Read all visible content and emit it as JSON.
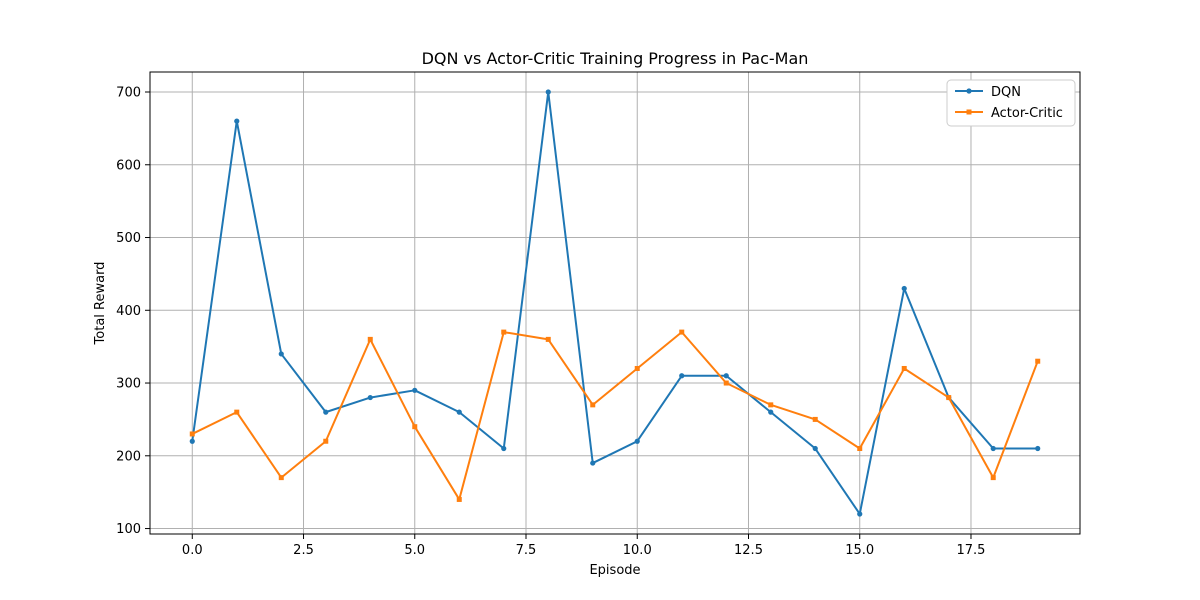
{
  "chart_data": {
    "type": "line",
    "title": "DQN vs Actor-Critic Training Progress in Pac-Man",
    "xlabel": "Episode",
    "ylabel": "Total Reward",
    "xlim": [
      -0.95,
      19.95
    ],
    "ylim": [
      92.5,
      727.5
    ],
    "xticks": [
      0.0,
      2.5,
      5.0,
      7.5,
      10.0,
      12.5,
      15.0,
      17.5
    ],
    "xtick_labels": [
      "0.0",
      "2.5",
      "5.0",
      "7.5",
      "10.0",
      "12.5",
      "15.0",
      "17.5"
    ],
    "yticks": [
      100,
      200,
      300,
      400,
      500,
      600,
      700
    ],
    "ytick_labels": [
      "100",
      "200",
      "300",
      "400",
      "500",
      "600",
      "700"
    ],
    "grid": true,
    "legend_position": "top-right",
    "x": [
      0,
      1,
      2,
      3,
      4,
      5,
      6,
      7,
      8,
      9,
      10,
      11,
      12,
      13,
      14,
      15,
      16,
      17,
      18,
      19
    ],
    "series": [
      {
        "name": "DQN",
        "color": "#1f77b4",
        "marker": "circle",
        "values": [
          220,
          660,
          340,
          260,
          280,
          290,
          260,
          210,
          700,
          190,
          220,
          310,
          310,
          260,
          210,
          120,
          430,
          280,
          210,
          210
        ]
      },
      {
        "name": "Actor-Critic",
        "color": "#ff7f0e",
        "marker": "square",
        "values": [
          230,
          260,
          170,
          220,
          360,
          240,
          140,
          370,
          360,
          270,
          320,
          370,
          300,
          270,
          250,
          210,
          320,
          280,
          170,
          330
        ]
      }
    ]
  }
}
